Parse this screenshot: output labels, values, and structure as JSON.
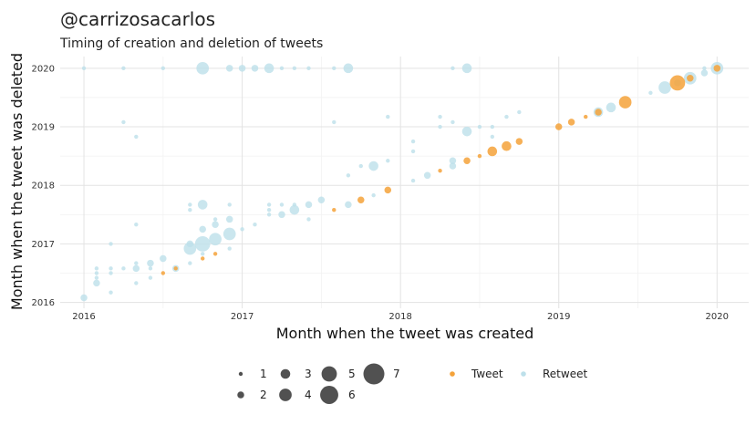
{
  "chart_data": {
    "type": "scatter",
    "title": "@carrizosacarlos",
    "subtitle": "Timing of creation and deletion of tweets",
    "xlabel": "Month when the tweet was created",
    "ylabel": "Month when the tweet was deleted",
    "xlim": [
      2015.85,
      2020.2
    ],
    "ylim": [
      2015.9,
      2020.2
    ],
    "x_ticks": [
      2016,
      2017,
      2018,
      2019,
      2020
    ],
    "y_ticks": [
      2016,
      2017,
      2018,
      2019,
      2020
    ],
    "x_tick_labels": [
      "2016",
      "2017",
      "2018",
      "2019",
      "2020"
    ],
    "y_tick_labels": [
      "2016",
      "2017",
      "2018",
      "2019",
      "2020"
    ],
    "grid": true,
    "legend_position": "bottom",
    "colors": {
      "Tweet": "#f4a23a",
      "Retweet": "#bde0ea"
    },
    "size_legend": [
      {
        "size": 1,
        "label": "1"
      },
      {
        "size": 2,
        "label": "2"
      },
      {
        "size": 3,
        "label": "3"
      },
      {
        "size": 4,
        "label": "4"
      },
      {
        "size": 5,
        "label": "5"
      },
      {
        "size": 6,
        "label": "6"
      },
      {
        "size": 7,
        "label": "7"
      }
    ],
    "type_legend": [
      {
        "name": "Tweet",
        "label": "Tweet"
      },
      {
        "name": "Retweet",
        "label": "Retweet"
      }
    ],
    "series": [
      {
        "name": "Retweet",
        "points": [
          [
            2016.0,
            2016.08,
            2
          ],
          [
            2016.08,
            2016.33,
            2
          ],
          [
            2016.08,
            2016.42,
            1
          ],
          [
            2016.08,
            2016.5,
            1
          ],
          [
            2016.08,
            2016.58,
            1
          ],
          [
            2016.17,
            2016.17,
            1
          ],
          [
            2016.17,
            2016.5,
            1
          ],
          [
            2016.17,
            2016.58,
            1
          ],
          [
            2016.17,
            2017.0,
            1
          ],
          [
            2016.25,
            2016.58,
            1
          ],
          [
            2016.25,
            2019.08,
            1
          ],
          [
            2016.33,
            2016.33,
            1
          ],
          [
            2016.33,
            2016.58,
            2
          ],
          [
            2016.33,
            2016.67,
            1
          ],
          [
            2016.33,
            2017.33,
            1
          ],
          [
            2016.33,
            2018.83,
            1
          ],
          [
            2016.42,
            2016.42,
            1
          ],
          [
            2016.42,
            2016.58,
            1
          ],
          [
            2016.42,
            2016.67,
            2
          ],
          [
            2016.5,
            2016.75,
            2
          ],
          [
            2016.58,
            2016.58,
            2
          ],
          [
            2016.67,
            2016.67,
            1
          ],
          [
            2016.67,
            2016.92,
            4
          ],
          [
            2016.67,
            2017.0,
            2
          ],
          [
            2016.67,
            2017.58,
            1
          ],
          [
            2016.67,
            2017.67,
            1
          ],
          [
            2016.75,
            2016.83,
            1
          ],
          [
            2016.75,
            2017.0,
            5
          ],
          [
            2016.75,
            2017.25,
            2
          ],
          [
            2016.75,
            2017.67,
            3
          ],
          [
            2016.75,
            2020.0,
            4
          ],
          [
            2016.83,
            2017.08,
            4
          ],
          [
            2016.83,
            2017.33,
            2
          ],
          [
            2016.83,
            2017.42,
            1
          ],
          [
            2016.92,
            2016.92,
            1
          ],
          [
            2016.92,
            2017.17,
            4
          ],
          [
            2016.92,
            2017.42,
            2
          ],
          [
            2016.92,
            2017.67,
            1
          ],
          [
            2016.92,
            2020.0,
            2
          ],
          [
            2017.0,
            2017.25,
            1
          ],
          [
            2017.0,
            2020.0,
            2
          ],
          [
            2017.08,
            2017.33,
            1
          ],
          [
            2017.08,
            2020.0,
            2
          ],
          [
            2017.17,
            2017.5,
            1
          ],
          [
            2017.17,
            2017.58,
            1
          ],
          [
            2017.17,
            2017.67,
            1
          ],
          [
            2017.17,
            2020.0,
            3
          ],
          [
            2017.25,
            2017.5,
            2
          ],
          [
            2017.25,
            2017.67,
            1
          ],
          [
            2017.25,
            2020.0,
            1
          ],
          [
            2017.33,
            2017.58,
            3
          ],
          [
            2017.33,
            2017.67,
            1
          ],
          [
            2017.33,
            2020.0,
            1
          ],
          [
            2017.42,
            2017.42,
            1
          ],
          [
            2017.42,
            2017.67,
            2
          ],
          [
            2017.42,
            2020.0,
            1
          ],
          [
            2017.5,
            2017.75,
            2
          ],
          [
            2017.58,
            2019.08,
            1
          ],
          [
            2017.58,
            2020.0,
            1
          ],
          [
            2017.67,
            2017.67,
            2
          ],
          [
            2017.67,
            2018.17,
            1
          ],
          [
            2017.67,
            2020.0,
            3
          ],
          [
            2017.75,
            2018.33,
            1
          ],
          [
            2017.83,
            2017.83,
            1
          ],
          [
            2017.83,
            2018.33,
            3
          ],
          [
            2017.92,
            2018.42,
            1
          ],
          [
            2017.92,
            2019.17,
            1
          ],
          [
            2018.08,
            2018.08,
            1
          ],
          [
            2018.08,
            2018.58,
            1
          ],
          [
            2018.08,
            2018.75,
            1
          ],
          [
            2018.17,
            2018.17,
            2
          ],
          [
            2018.25,
            2019.0,
            1
          ],
          [
            2018.25,
            2019.17,
            1
          ],
          [
            2018.33,
            2018.33,
            2
          ],
          [
            2018.33,
            2018.42,
            2
          ],
          [
            2018.33,
            2019.08,
            1
          ],
          [
            2018.33,
            2020.0,
            1
          ],
          [
            2018.42,
            2018.92,
            3
          ],
          [
            2018.42,
            2020.0,
            3
          ],
          [
            2018.5,
            2019.0,
            1
          ],
          [
            2018.58,
            2018.83,
            1
          ],
          [
            2018.58,
            2019.0,
            1
          ],
          [
            2018.67,
            2019.17,
            1
          ],
          [
            2018.75,
            2019.25,
            1
          ],
          [
            2019.25,
            2019.25,
            3
          ],
          [
            2019.33,
            2019.33,
            3
          ],
          [
            2019.58,
            2019.58,
            1
          ],
          [
            2019.67,
            2019.67,
            4
          ],
          [
            2019.75,
            2019.75,
            2
          ],
          [
            2019.83,
            2019.83,
            4
          ],
          [
            2019.92,
            2019.92,
            2
          ],
          [
            2019.92,
            2020.0,
            1
          ],
          [
            2020.0,
            2020.0,
            4
          ],
          [
            2016.0,
            2020.0,
            1
          ],
          [
            2016.25,
            2020.0,
            1
          ],
          [
            2016.5,
            2020.0,
            1
          ]
        ]
      },
      {
        "name": "Tweet",
        "points": [
          [
            2016.5,
            2016.5,
            1
          ],
          [
            2016.58,
            2016.58,
            1
          ],
          [
            2016.75,
            2016.75,
            1
          ],
          [
            2016.83,
            2016.83,
            1
          ],
          [
            2017.58,
            2017.58,
            1
          ],
          [
            2017.75,
            2017.75,
            2
          ],
          [
            2017.92,
            2017.92,
            2
          ],
          [
            2018.25,
            2018.25,
            1
          ],
          [
            2018.42,
            2018.42,
            2
          ],
          [
            2018.5,
            2018.5,
            1
          ],
          [
            2018.58,
            2018.58,
            3
          ],
          [
            2018.67,
            2018.67,
            3
          ],
          [
            2018.75,
            2018.75,
            2
          ],
          [
            2019.0,
            2019.0,
            2
          ],
          [
            2019.08,
            2019.08,
            2
          ],
          [
            2019.17,
            2019.17,
            1
          ],
          [
            2019.25,
            2019.25,
            2
          ],
          [
            2019.42,
            2019.42,
            4
          ],
          [
            2019.75,
            2019.75,
            5
          ],
          [
            2019.83,
            2019.83,
            2
          ],
          [
            2020.0,
            2020.0,
            2
          ]
        ]
      }
    ]
  }
}
